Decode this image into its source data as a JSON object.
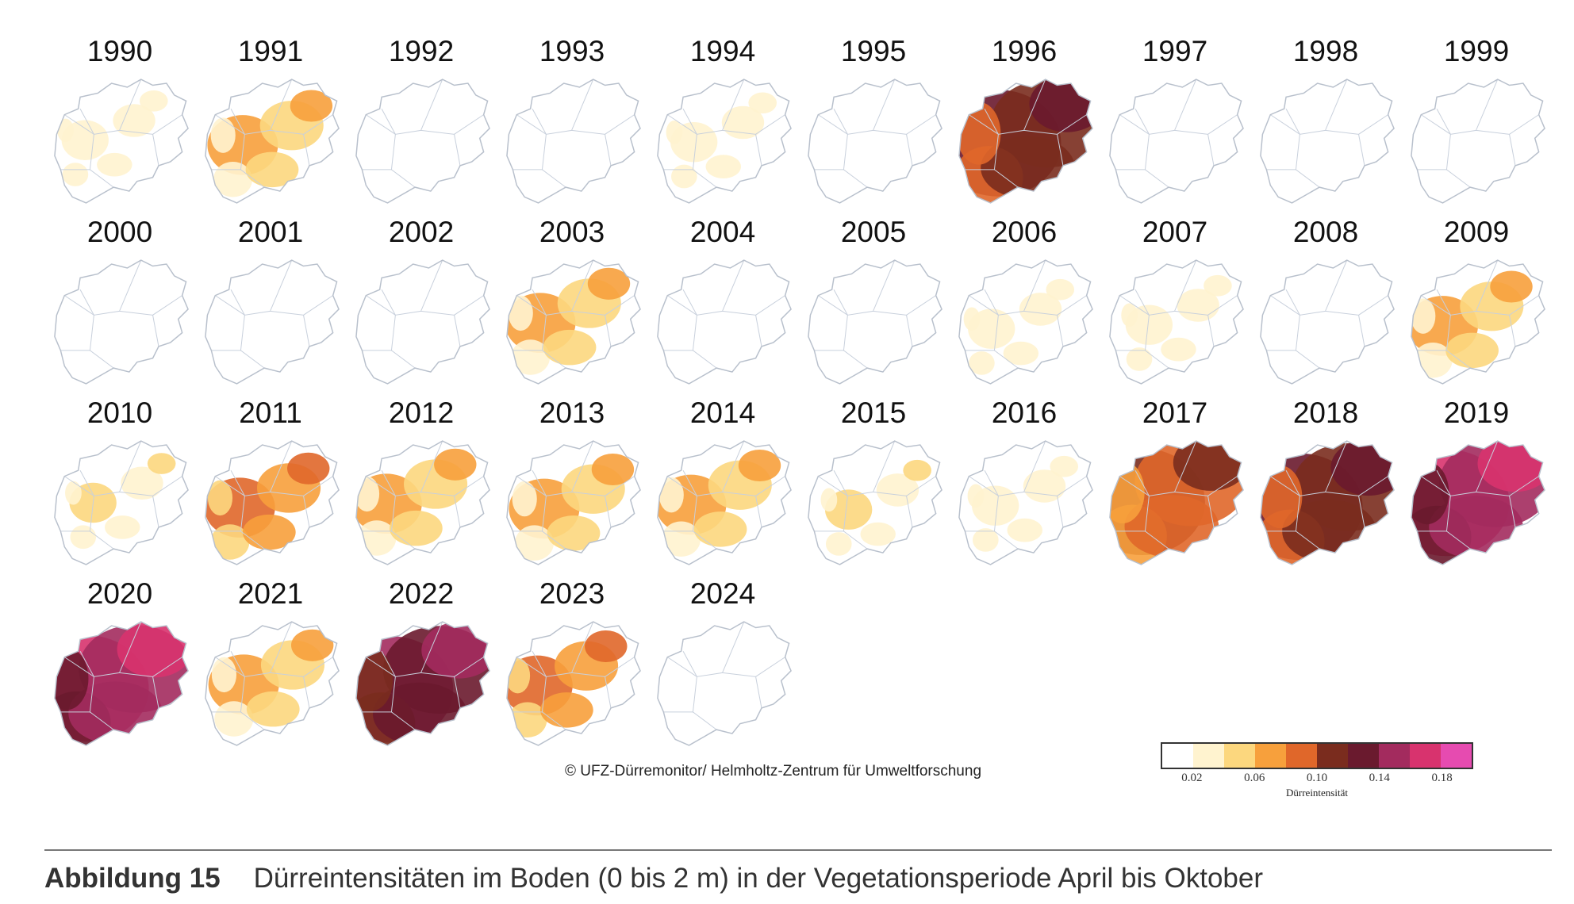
{
  "colors": [
    "#ffffff",
    "#fff3cf",
    "#fcd77e",
    "#f7a03c",
    "#e0672a",
    "#7a2c1e",
    "#6a1a2e",
    "#a32b5e",
    "#d8336e",
    "#e64bb0"
  ],
  "maps": [
    {
      "year": "1990",
      "level": 1
    },
    {
      "year": "1991",
      "level": 3
    },
    {
      "year": "1992",
      "level": 0
    },
    {
      "year": "1993",
      "level": 0
    },
    {
      "year": "1994",
      "level": 1
    },
    {
      "year": "1995",
      "level": 0
    },
    {
      "year": "1996",
      "level": 6
    },
    {
      "year": "1997",
      "level": 0
    },
    {
      "year": "1998",
      "level": 0
    },
    {
      "year": "1999",
      "level": 0
    },
    {
      "year": "2000",
      "level": 0
    },
    {
      "year": "2001",
      "level": 0
    },
    {
      "year": "2002",
      "level": 0
    },
    {
      "year": "2003",
      "level": 3
    },
    {
      "year": "2004",
      "level": 0
    },
    {
      "year": "2005",
      "level": 0
    },
    {
      "year": "2006",
      "level": 1
    },
    {
      "year": "2007",
      "level": 1
    },
    {
      "year": "2008",
      "level": 0
    },
    {
      "year": "2009",
      "level": 3
    },
    {
      "year": "2010",
      "level": 2
    },
    {
      "year": "2011",
      "level": 4
    },
    {
      "year": "2012",
      "level": 3
    },
    {
      "year": "2013",
      "level": 3
    },
    {
      "year": "2014",
      "level": 3
    },
    {
      "year": "2015",
      "level": 2
    },
    {
      "year": "2016",
      "level": 1
    },
    {
      "year": "2017",
      "level": 5
    },
    {
      "year": "2018",
      "level": 6
    },
    {
      "year": "2019",
      "level": 8
    },
    {
      "year": "2020",
      "level": 8
    },
    {
      "year": "2021",
      "level": 3
    },
    {
      "year": "2022",
      "level": 7
    },
    {
      "year": "2023",
      "level": 4
    },
    {
      "year": "2024",
      "level": 0
    }
  ],
  "copyright": "© UFZ-Dürremonitor/ Helmholtz-Zentrum für Umweltforschung",
  "legend": {
    "ticks": [
      "0.02",
      "0.06",
      "0.10",
      "0.14",
      "0.18"
    ],
    "title": "Dürreintensität"
  },
  "caption": {
    "label": "Abbildung 15",
    "text": "Dürreintensitäten im Boden (0 bis 2 m) in der Vegetationsperiode April bis Oktober"
  }
}
